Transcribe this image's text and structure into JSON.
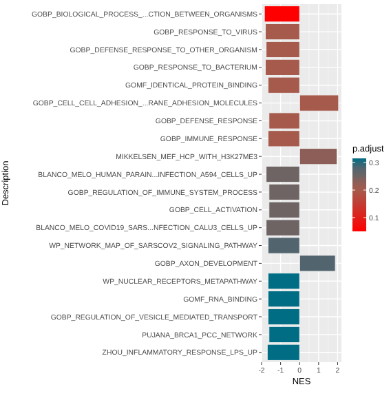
{
  "chart_data": {
    "type": "bar",
    "orientation": "horizontal",
    "xlabel": "NES",
    "ylabel": "Description",
    "clabel": "p.adjust",
    "categories": [
      "GOBP_BIOLOGICAL_PROCESS_...CTION_BETWEEN_ORGANISMS",
      "GOBP_RESPONSE_TO_VIRUS",
      "GOBP_DEFENSE_RESPONSE_TO_OTHER_ORGANISM",
      "GOBP_RESPONSE_TO_BACTERIUM",
      "GOMF_IDENTICAL_PROTEIN_BINDING",
      "GOBP_CELL_CELL_ADHESION_...RANE_ADHESION_MOLECULES",
      "GOBP_DEFENSE_RESPONSE",
      "GOBP_IMMUNE_RESPONSE",
      "MIKKELSEN_MEF_HCP_WITH_H3K27ME3",
      "BLANCO_MELO_HUMAN_PARAIN...INFECTION_A594_CELLS_UP",
      "GOBP_REGULATION_OF_IMMUNE_SYSTEM_PROCESS",
      "GOBP_CELL_ACTIVATION",
      "BLANCO_MELO_COVID19_SARS...NFECTION_CALU3_CELLS_UP",
      "WP_NETWORK_MAP_OF_SARSCOV2_SIGNALING_PATHWAY",
      "GOBP_AXON_DEVELOPMENT",
      "WP_NUCLEAR_RECEPTORS_METAPATHWAY",
      "GOMF_RNA_BINDING",
      "GOBP_REGULATION_OF_VESICLE_MEDIATED_TRANSPORT",
      "PUJANA_BRCA1_PCC_NETWORK",
      "ZHOU_INFLAMMATORY_RESPONSE_LPS_UP"
    ],
    "values": [
      -1.85,
      -1.8,
      -1.76,
      -1.8,
      -1.66,
      2.05,
      -1.61,
      -1.66,
      1.97,
      -1.76,
      -1.61,
      -1.61,
      -1.76,
      -1.66,
      1.88,
      -1.66,
      -1.66,
      -1.66,
      -1.61,
      -1.7
    ],
    "cvalues": [
      0.05,
      0.2,
      0.2,
      0.2,
      0.2,
      0.2,
      0.2,
      0.2,
      0.23,
      0.25,
      0.25,
      0.25,
      0.25,
      0.28,
      0.28,
      0.315,
      0.315,
      0.315,
      0.315,
      0.315
    ],
    "clim": [
      0.05,
      0.315
    ],
    "cticks": [
      0.1,
      0.2,
      0.3
    ],
    "colors": [
      "#ff0000",
      "#a55a4c",
      "#a55a4c",
      "#a55a4c",
      "#a55a4c",
      "#a55a4c",
      "#a55a4c",
      "#a55a4c",
      "#8c5e57",
      "#6e6464",
      "#6e6464",
      "#6e6464",
      "#6e6464",
      "#52656f",
      "#52656f",
      "#006d85",
      "#006d85",
      "#006d85",
      "#006d85",
      "#006d85"
    ],
    "xlim": [
      -2.0,
      2.2
    ],
    "xticks": [
      -2,
      -1,
      0,
      1,
      2
    ],
    "grid": true
  }
}
